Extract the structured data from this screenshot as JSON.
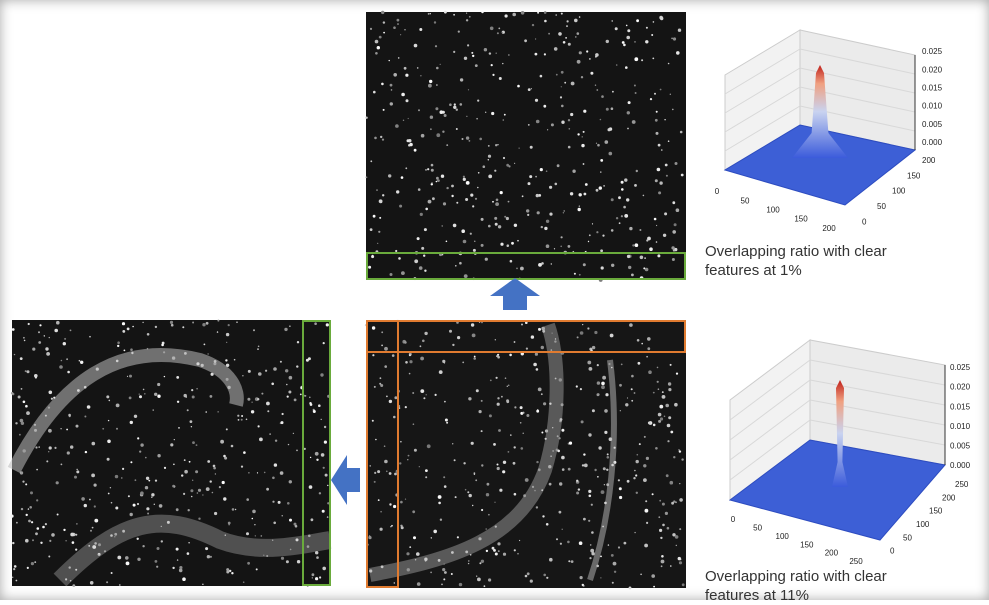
{
  "figure": {
    "top_plot": {
      "z_ticks": [
        "0.025",
        "0.020",
        "0.015",
        "0.010",
        "0.005",
        "0.000"
      ],
      "x_ticks": [
        "0",
        "50",
        "100",
        "150",
        "200"
      ],
      "y_ticks": [
        "200",
        "150",
        "100",
        "50",
        "0"
      ],
      "caption": "Overlapping ratio with clear features at 1%"
    },
    "bottom_plot": {
      "z_ticks": [
        "0.025",
        "0.020",
        "0.015",
        "0.010",
        "0.005",
        "0.000"
      ],
      "x_ticks": [
        "0",
        "50",
        "100",
        "150",
        "200",
        "250"
      ],
      "y_ticks": [
        "250",
        "200",
        "150",
        "100",
        "50",
        "0"
      ],
      "caption": "Overlapping ratio with clear features at 11%"
    }
  }
}
